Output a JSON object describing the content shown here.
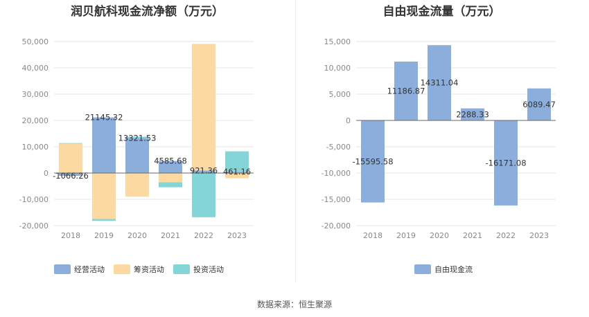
{
  "source_label": "数据来源：恒生聚源",
  "colors": {
    "operating": "#8caedd",
    "financing": "#fcd9a1",
    "investing": "#84d5d8",
    "free_cash_flow": "#8caedd",
    "axis_text": "#888888",
    "grid": "#e6e6e6"
  },
  "chart_data": [
    {
      "type": "bar",
      "stacked": true,
      "title": "润贝航科现金流净额（万元）",
      "categories": [
        "2018",
        "2019",
        "2020",
        "2021",
        "2022",
        "2023"
      ],
      "ylim": [
        -20000,
        50000
      ],
      "yticks": [
        50000,
        40000,
        30000,
        20000,
        10000,
        0,
        -10000,
        -20000
      ],
      "ytick_labels": [
        "50,000",
        "40,000",
        "30,000",
        "20,000",
        "10,000",
        "0",
        "-10,000",
        "-20,000"
      ],
      "grid": true,
      "legend": "bottom-left",
      "series": [
        {
          "name": "经营活动",
          "color_key": "operating",
          "values": [
            -1066.26,
            21145.32,
            13321.53,
            4585.68,
            921.36,
            461.16
          ],
          "labels": [
            "-1066.26",
            "21145.32",
            "13321.53",
            "4585.68",
            "921.36",
            "461.16"
          ]
        },
        {
          "name": "筹资活动",
          "color_key": "financing",
          "values": [
            11200,
            -17500,
            -9000,
            -3500,
            48200,
            -2000
          ]
        },
        {
          "name": "投资活动",
          "color_key": "investing",
          "values": [
            200,
            -700,
            500,
            -1900,
            -16800,
            7800
          ]
        }
      ]
    },
    {
      "type": "bar",
      "title": "自由现金流量（万元）",
      "categories": [
        "2018",
        "2019",
        "2020",
        "2021",
        "2022",
        "2023"
      ],
      "ylim": [
        -20000,
        15000
      ],
      "yticks": [
        15000,
        10000,
        5000,
        0,
        -5000,
        -10000,
        -15000,
        -20000
      ],
      "ytick_labels": [
        "15,000",
        "10,000",
        "5,000",
        "0",
        "-5,000",
        "-10,000",
        "-15,000",
        "-20,000"
      ],
      "grid": true,
      "legend": "bottom-center",
      "series": [
        {
          "name": "自由现金流",
          "color_key": "free_cash_flow",
          "values": [
            -15595.58,
            11186.87,
            14311.04,
            2288.33,
            -16171.08,
            6089.47
          ],
          "labels": [
            "-15595.58",
            "11186.87",
            "14311.04",
            "2288.33",
            "-16171.08",
            "6089.47"
          ]
        }
      ]
    }
  ]
}
